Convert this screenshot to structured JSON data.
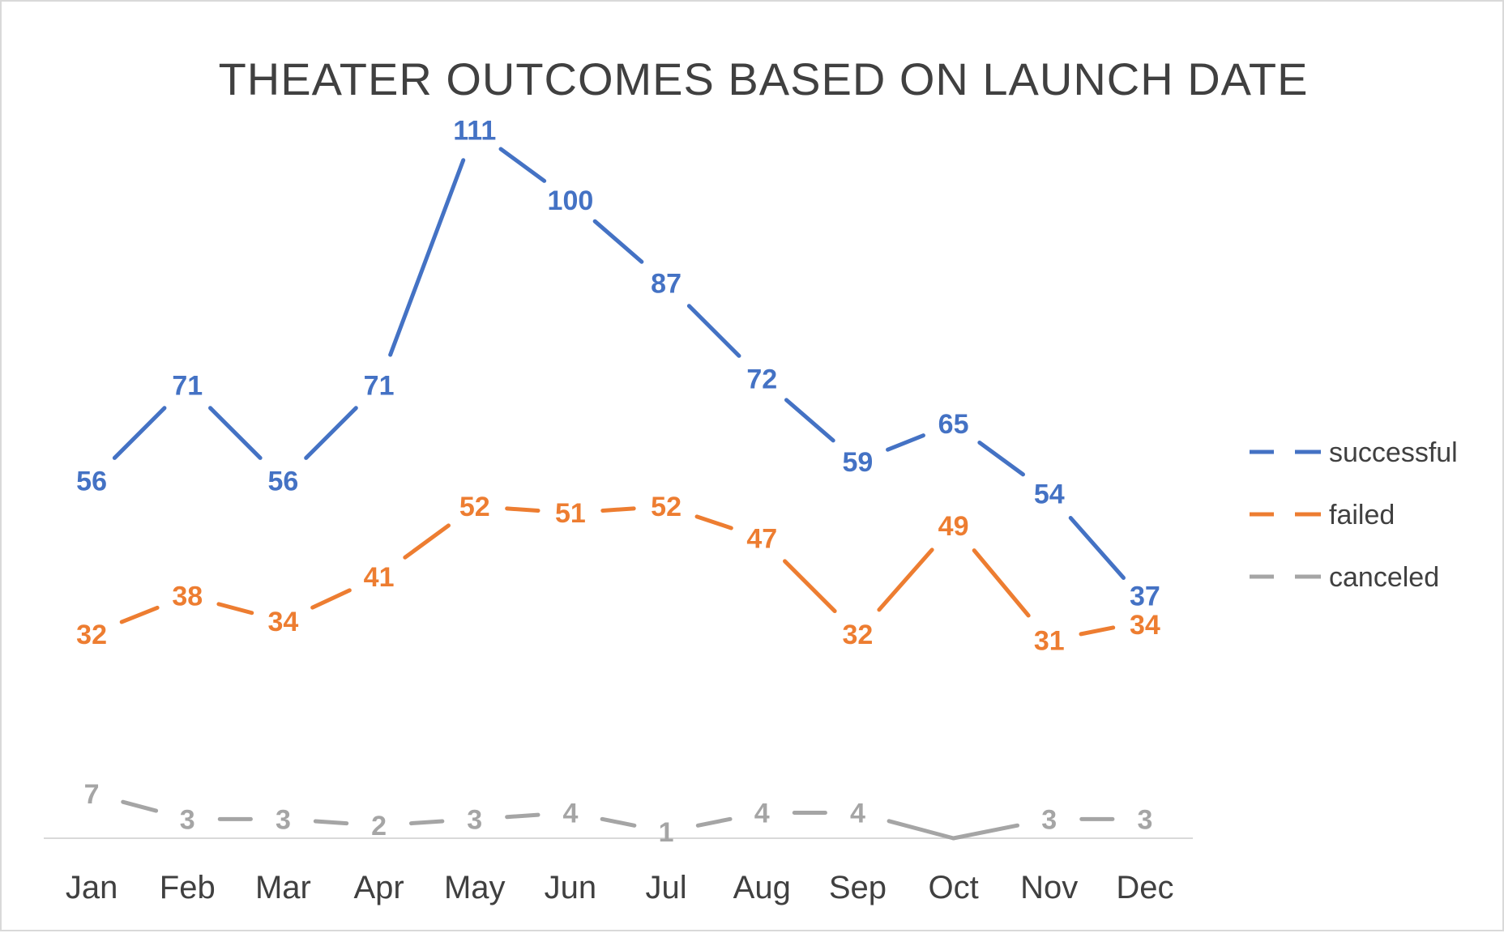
{
  "chart_data": {
    "type": "line",
    "title": "THEATER OUTCOMES BASED ON LAUNCH DATE",
    "xlabel": "",
    "ylabel": "",
    "categories": [
      "Jan",
      "Feb",
      "Mar",
      "Apr",
      "May",
      "Jun",
      "Jul",
      "Aug",
      "Sep",
      "Oct",
      "Nov",
      "Dec"
    ],
    "series": [
      {
        "name": "successful",
        "color": "#4472c4",
        "values": [
          56,
          71,
          56,
          71,
          111,
          100,
          87,
          72,
          59,
          65,
          54,
          37
        ]
      },
      {
        "name": "failed",
        "color": "#ed7d31",
        "values": [
          32,
          38,
          34,
          41,
          52,
          51,
          52,
          47,
          32,
          49,
          31,
          34
        ]
      },
      {
        "name": "canceled",
        "color": "#a5a5a5",
        "values": [
          7,
          3,
          3,
          2,
          3,
          4,
          1,
          4,
          4,
          0,
          3,
          3
        ],
        "hidden_label_indices": [
          9
        ]
      }
    ],
    "ylim": [
      0,
      120
    ],
    "grid": false,
    "legend_position": "right",
    "data_labels": true
  }
}
